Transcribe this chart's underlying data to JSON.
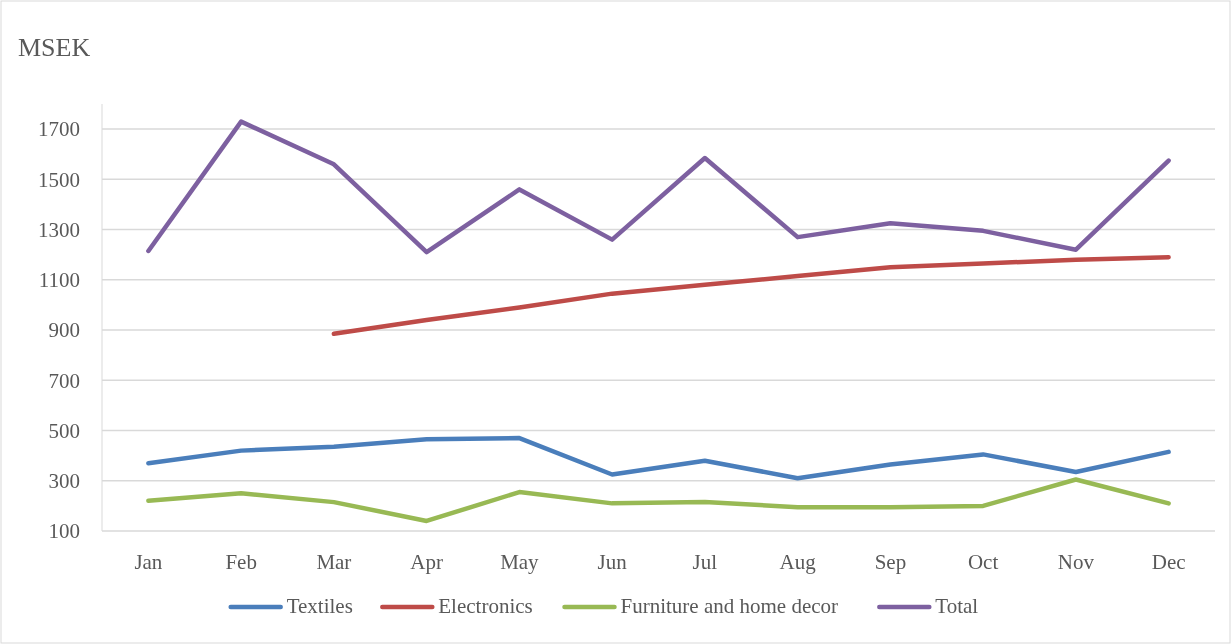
{
  "chart_data": {
    "type": "line",
    "title": "MSEK",
    "categories": [
      "Jan",
      "Feb",
      "Mar",
      "Apr",
      "May",
      "Jun",
      "Jul",
      "Aug",
      "Sep",
      "Oct",
      "Nov",
      "Dec"
    ],
    "series": [
      {
        "name": "Textiles",
        "color": "#4a7ebb",
        "values": [
          370,
          420,
          435,
          465,
          470,
          325,
          380,
          310,
          365,
          405,
          335,
          415
        ]
      },
      {
        "name": "Electronics",
        "color": "#be4b48",
        "values": [
          null,
          null,
          885,
          940,
          990,
          1045,
          1080,
          1115,
          1150,
          1165,
          1180,
          1190
        ]
      },
      {
        "name": "Furniture and home decor",
        "color": "#98b954",
        "values": [
          220,
          250,
          215,
          140,
          255,
          210,
          215,
          195,
          195,
          200,
          305,
          210
        ]
      },
      {
        "name": "Total",
        "color": "#7d60a0",
        "values": [
          1215,
          1730,
          1560,
          1210,
          1460,
          1260,
          1585,
          1270,
          1325,
          1295,
          1220,
          1575
        ]
      }
    ],
    "ylim": [
      100,
      1800
    ],
    "yticks": [
      100,
      300,
      500,
      700,
      900,
      1100,
      1300,
      1500,
      1700
    ],
    "grid": "y",
    "legend": "bottom",
    "marker": "none",
    "line_style": "solid"
  }
}
